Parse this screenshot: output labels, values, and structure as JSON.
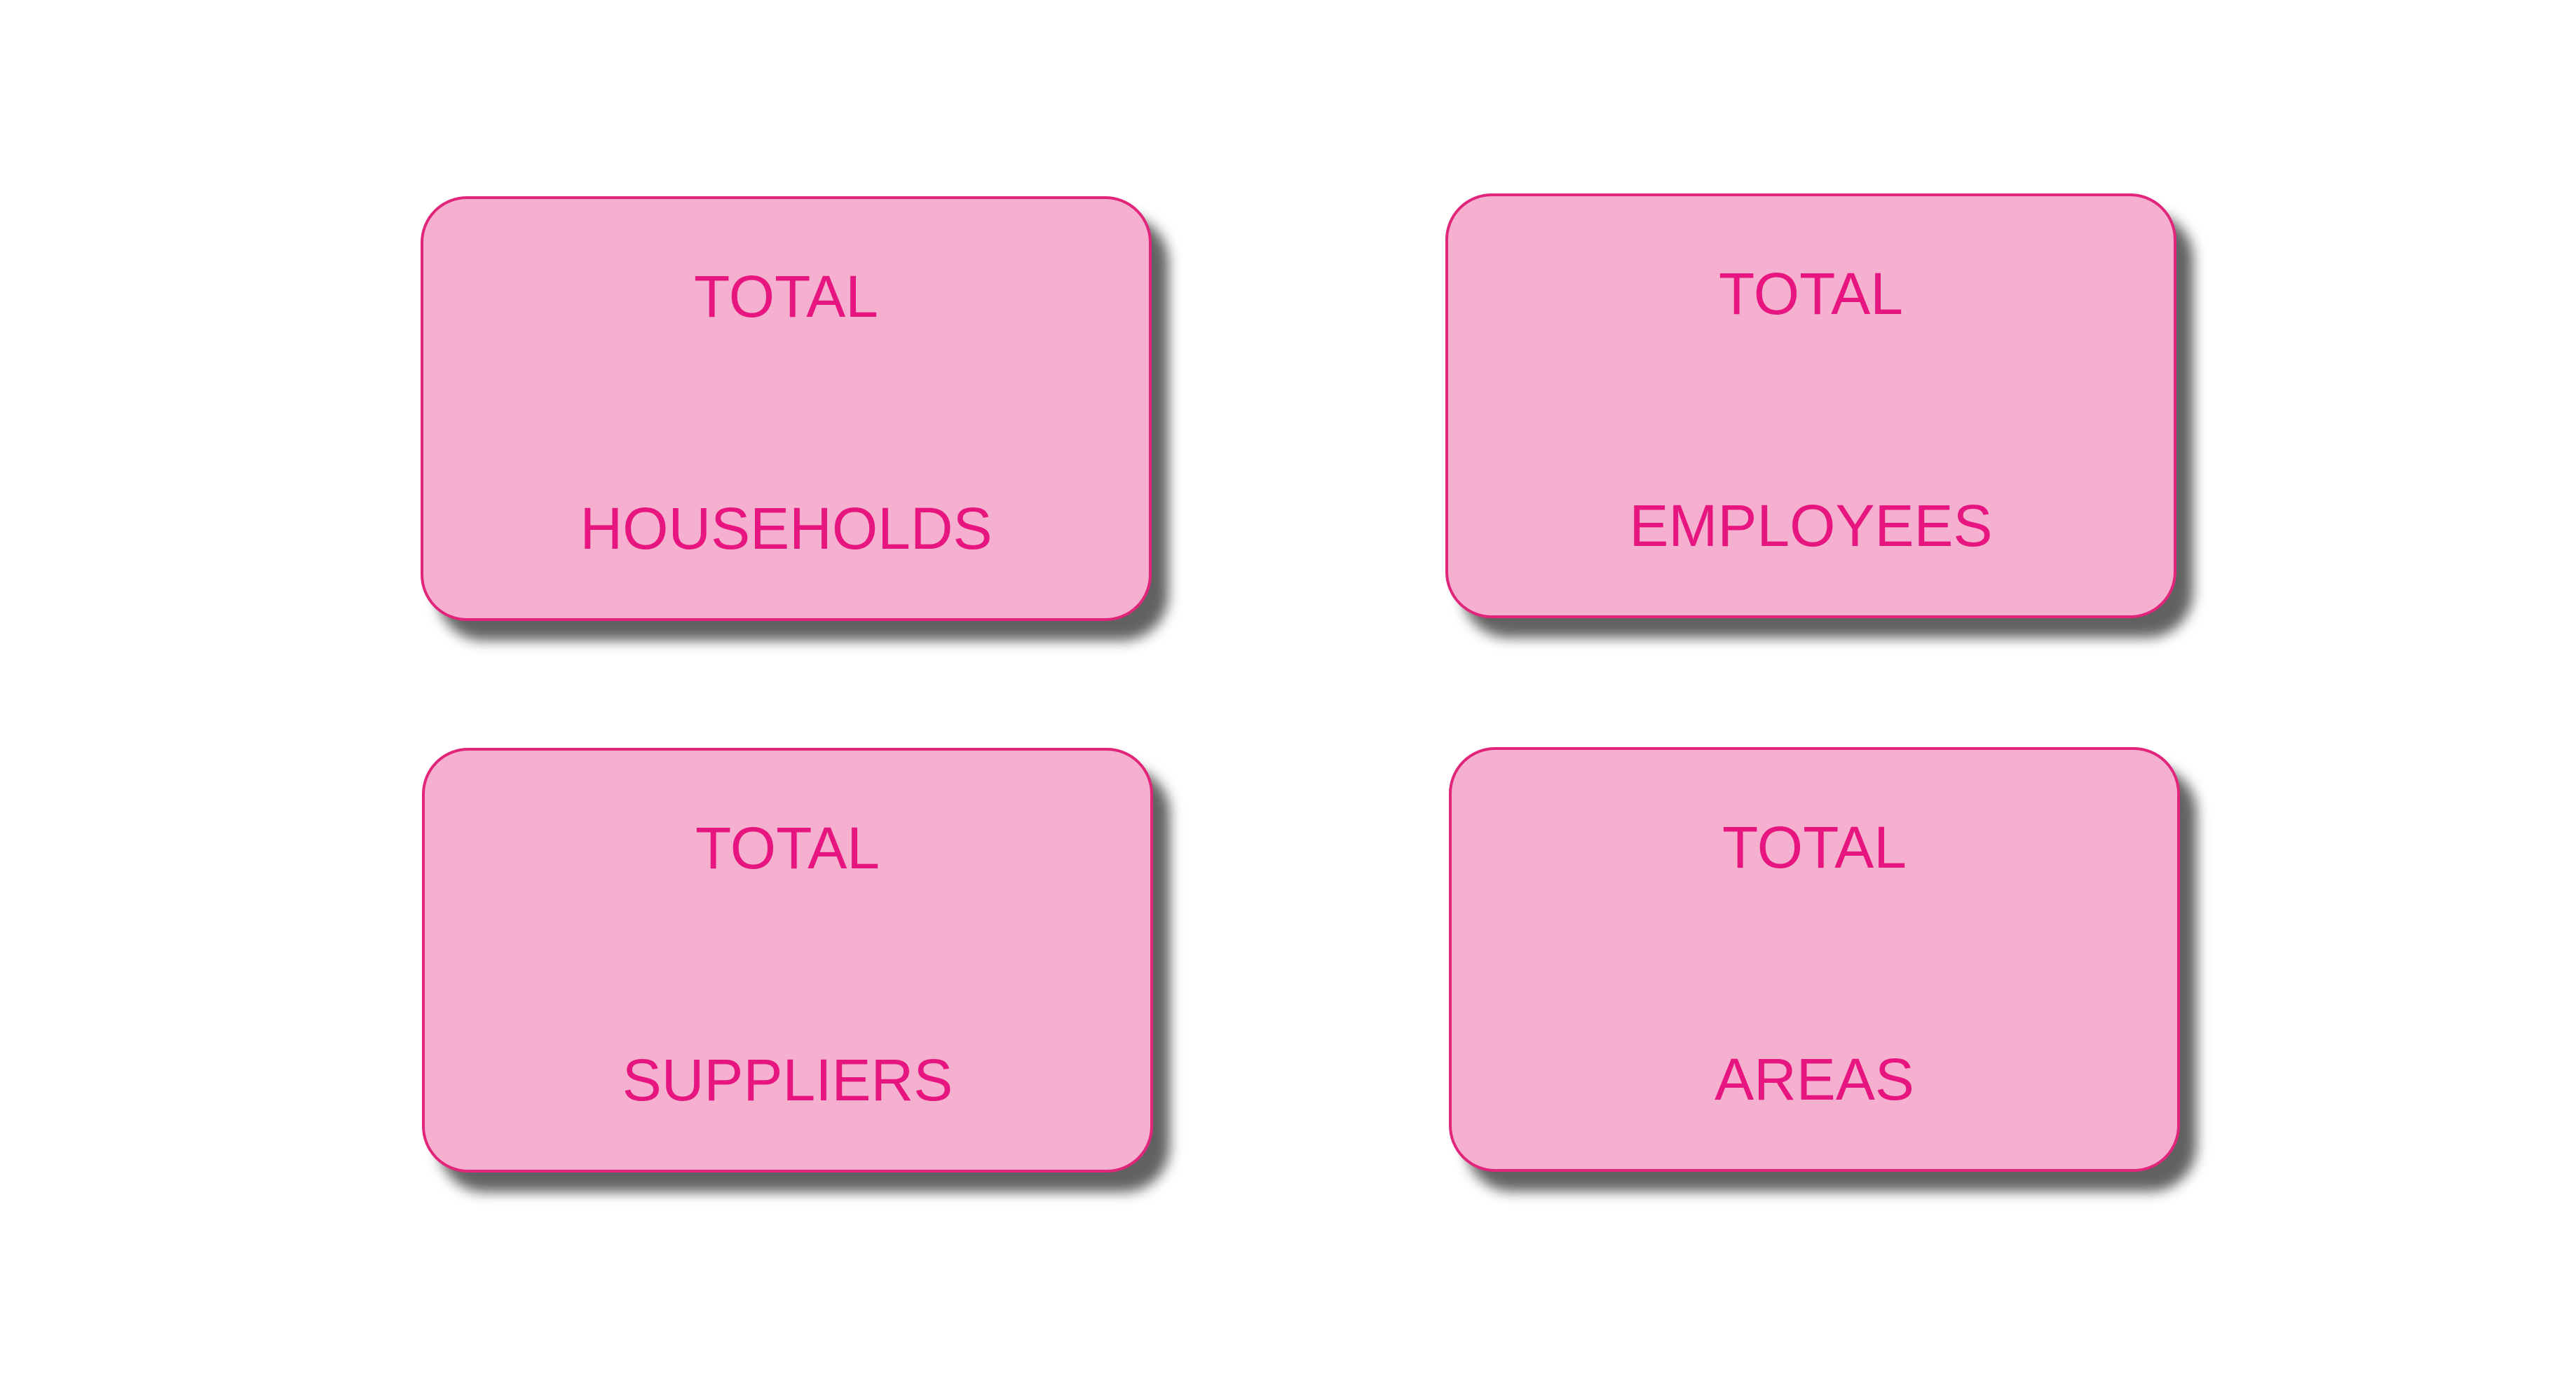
{
  "cards": [
    {
      "line1": "TOTAL",
      "line2": "HOUSEHOLDS"
    },
    {
      "line1": "TOTAL",
      "line2": "EMPLOYEES"
    },
    {
      "line1": "TOTAL",
      "line2": "SUPPLIERS"
    },
    {
      "line1": "TOTAL",
      "line2": "AREAS"
    }
  ],
  "colors": {
    "card_fill": "#f6b0cf",
    "card_border": "#e0257a",
    "text": "#e6157f",
    "background": "#ffffff"
  }
}
